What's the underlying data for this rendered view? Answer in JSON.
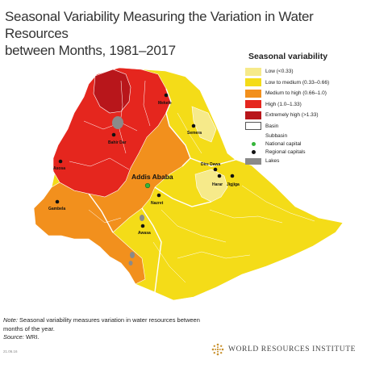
{
  "title": {
    "line1": "Seasonal Variability Measuring the Variation in Water Resources",
    "line2": "between Months, 1981–2017"
  },
  "colors": {
    "low": "#f6ea8a",
    "low_medium": "#f4dc18",
    "medium_high": "#f2901d",
    "high": "#e5261e",
    "extreme": "#b8161b",
    "lakes": "#8a8a8a",
    "national_capital": "#35b53a"
  },
  "legend": {
    "title": "Seasonal variability",
    "classes": [
      {
        "label": "Low (<0.33)",
        "color": "#f6ea8a"
      },
      {
        "label": "Low to medium (0.33–0.66)",
        "color": "#f4dc18"
      },
      {
        "label": "Medium to high (0.66–1.0)",
        "color": "#f2901d"
      },
      {
        "label": "High (1.0–1.33)",
        "color": "#e5261e"
      },
      {
        "label": "Extremely high (>1.33)",
        "color": "#b8161b"
      }
    ],
    "basin": "Basin",
    "subbasin": "Subbasin",
    "national_capital": "National capital",
    "regional_capitals": "Regional capitals",
    "lakes": "Lakes"
  },
  "cities": {
    "mekele": "Mekele",
    "semera": "Semera",
    "bahir_dar": "Bahir Dar",
    "asosa": "Asosa",
    "addis_ababa": "Addis Ababa",
    "dire_dawa": "Dire Dawa",
    "harar": "Harar",
    "jigjiga": "Jigjiga",
    "nazret": "Nazret",
    "gambela": "Gambela",
    "awasa": "Awasa"
  },
  "note": {
    "prefix": "Note:",
    "text": "Seasonal variability measures variation in water resources between months of the year.",
    "source_label": "Source:",
    "source": "WRI."
  },
  "code": "21.06.16",
  "org": "WORLD RESOURCES INSTITUTE"
}
